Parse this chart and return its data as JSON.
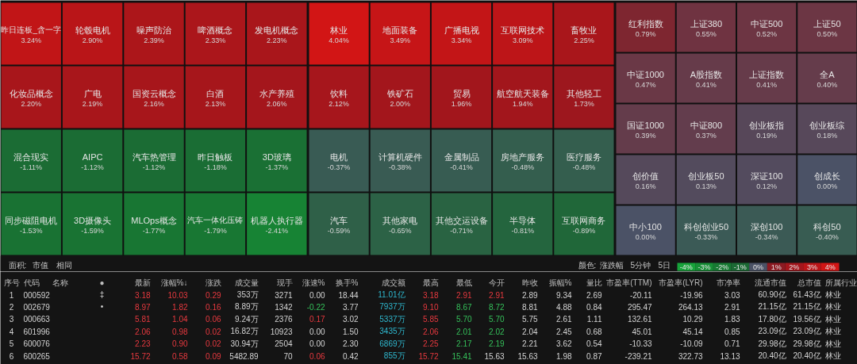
{
  "chart_data": [
    {
      "type": "other",
      "categories": [
        "昨日连板_含一字",
        "轮毂电机",
        "噪声防治",
        "啤酒概念",
        "发电机概念",
        "化妆品概念",
        "广电",
        "国资云概念",
        "白酒",
        "水产养殖",
        "混合现实",
        "AIPC",
        "汽车热管理",
        "昨日触板",
        "3D玻璃",
        "同步磁阻电机",
        "3D摄像头",
        "MLOps概念",
        "汽车一体化压铸",
        "机器人执行器",
        "林业",
        "地面装备",
        "广播电视",
        "互联网技术",
        "畜牧业",
        "饮料",
        "铁矿石",
        "贸易",
        "航空航天装备",
        "其他轻工",
        "电机",
        "计算机硬件",
        "金属制品",
        "房地产服务",
        "医疗服务",
        "汽车",
        "其他家电",
        "其他交运设备",
        "半导体",
        "互联网商务",
        "红利指数",
        "上证380",
        "中证500",
        "上证50",
        "中证1000",
        "A股指数",
        "上证指数",
        "全A",
        "国证1000",
        "中证800",
        "创业板指",
        "创业板综",
        "创价值",
        "创业板50",
        "深证100",
        "创成长",
        "中小100",
        "科创创业50",
        "深创100",
        "科创50"
      ],
      "values": [
        3.24,
        2.9,
        2.39,
        2.33,
        2.23,
        2.2,
        2.19,
        2.16,
        2.13,
        2.06,
        -1.11,
        -1.12,
        -1.12,
        -1.18,
        -1.37,
        -1.53,
        -1.59,
        -1.77,
        -1.79,
        -2.41,
        4.04,
        3.49,
        3.34,
        3.09,
        2.25,
        2.12,
        2.0,
        1.96,
        1.94,
        1.73,
        -0.37,
        -0.38,
        -0.41,
        -0.48,
        -0.48,
        -0.59,
        -0.65,
        -0.71,
        -0.81,
        -0.89,
        0.79,
        0.55,
        0.52,
        0.5,
        0.47,
        0.41,
        0.41,
        0.4,
        0.39,
        0.37,
        0.19,
        0.18,
        0.16,
        0.13,
        0.12,
        0.0,
        0.0,
        -0.33,
        -0.34,
        -0.4
      ],
      "value_labels": [
        "3.24%",
        "2.90%",
        "2.39%",
        "2.33%",
        "2.23%",
        "2.20%",
        "2.19%",
        "2.16%",
        "2.13%",
        "2.06%",
        "-1.11%",
        "-1.12%",
        "-1.12%",
        "-1.18%",
        "-1.37%",
        "-1.53%",
        "-1.59%",
        "-1.77%",
        "-1.79%",
        "-2.41%",
        "4.04%",
        "3.49%",
        "3.34%",
        "3.09%",
        "2.25%",
        "2.12%",
        "2.00%",
        "1.96%",
        "1.94%",
        "1.73%",
        "-0.37%",
        "-0.38%",
        "-0.41%",
        "-0.48%",
        "-0.48%",
        "-0.59%",
        "-0.65%",
        "-0.71%",
        "-0.81%",
        "-0.89%",
        "0.79%",
        "0.55%",
        "0.52%",
        "0.50%",
        "0.47%",
        "0.41%",
        "0.41%",
        "0.40%",
        "0.39%",
        "0.37%",
        "0.19%",
        "0.18%",
        "0.16%",
        "0.13%",
        "0.12%",
        "0.00%",
        "0.00%",
        "-0.33%",
        "-0.34%",
        "-0.40%"
      ],
      "annotations": [
        "面积:",
        "市值",
        "相同",
        "颜色:",
        "涨跌幅",
        "5分钟",
        "5日"
      ]
    },
    {
      "type": "heatmap",
      "categories": [
        null,
        null,
        null,
        null,
        null,
        null,
        null,
        null,
        null
      ],
      "y_categories": [
        null
      ],
      "cells": [
        [
          -4,
          -3,
          -2,
          -1,
          0,
          1,
          2,
          3,
          4
        ]
      ],
      "cell_labels": [
        [
          "-4%",
          "-3%",
          "-2%",
          "-1%",
          "0%",
          "1%",
          "2%",
          "3%",
          "4%"
        ]
      ]
    },
    {
      "type": "heatmap",
      "ylabel": "序号",
      "categories": [
        "代码",
        "名称",
        "●",
        "最新",
        "涨幅%↓",
        "涨跌",
        "成交量",
        "现手",
        "涨速%",
        "换手%",
        "成交额",
        "最高",
        "最低",
        "今开",
        "昨收",
        "振幅%",
        "量比",
        "市盈率(TTM)",
        "市盈率(LYR)",
        "市净率",
        "流通市值",
        "总市值",
        "所属行业"
      ],
      "y_categories": [
        "1",
        "2",
        "3",
        "4",
        "5",
        "6"
      ],
      "cells": [
        [
          null,
          null,
          null,
          3.18,
          10.03,
          0.29,
          353,
          3271,
          0.0,
          18.44,
          11.01,
          3.18,
          2.91,
          2.91,
          2.89,
          9.34,
          2.69,
          -20.11,
          -19.96,
          3.03,
          60.9,
          61.43,
          null
        ],
        [
          null,
          null,
          null,
          8.97,
          1.82,
          0.16,
          8.89,
          1342,
          -0.22,
          3.77,
          7937,
          9.1,
          8.67,
          8.72,
          8.81,
          4.88,
          0.84,
          295.47,
          264.13,
          2.91,
          21.15,
          21.15,
          null
        ],
        [
          null,
          null,
          null,
          5.81,
          1.04,
          0.06,
          9.24,
          2376,
          0.17,
          3.02,
          5337,
          5.85,
          5.7,
          5.7,
          5.75,
          2.61,
          1.11,
          132.61,
          10.29,
          1.83,
          17.8,
          19.56,
          null
        ],
        [
          null,
          null,
          null,
          2.06,
          0.98,
          0.02,
          16.82,
          10923,
          0.0,
          1.5,
          3435,
          2.06,
          2.01,
          2.02,
          2.04,
          2.45,
          0.68,
          45.01,
          45.14,
          0.85,
          23.09,
          23.09,
          null
        ],
        [
          null,
          null,
          null,
          2.23,
          0.9,
          0.02,
          30.94,
          2504,
          0.0,
          2.3,
          6869,
          2.25,
          2.17,
          2.19,
          2.21,
          3.62,
          0.54,
          -10.33,
          -10.09,
          0.71,
          29.98,
          29.98,
          null
        ],
        [
          null,
          null,
          null,
          15.72,
          0.58,
          0.09,
          5482.89,
          70,
          0.06,
          0.42,
          855,
          15.72,
          15.41,
          15.63,
          15.63,
          1.98,
          0.87,
          -239.21,
          322.73,
          13.13,
          20.4,
          20.4,
          null
        ]
      ],
      "cell_labels": [
        [
          "000592",
          null,
          "‡",
          "3.18",
          "10.03",
          "0.29",
          "353万",
          "3271",
          "0.00",
          "18.44",
          "11.01亿",
          "3.18",
          "2.91",
          "2.91",
          "2.89",
          "9.34",
          "2.69",
          "-20.11",
          "-19.96",
          "3.03",
          "60.90亿",
          "61.43亿",
          "林业"
        ],
        [
          "002679",
          null,
          "•",
          "8.97",
          "1.82",
          "0.16",
          "8.89万",
          "1342",
          "-0.22",
          "3.77",
          "7937万",
          "9.10",
          "8.67",
          "8.72",
          "8.81",
          "4.88",
          "0.84",
          "295.47",
          "264.13",
          "2.91",
          "21.15亿",
          "21.15亿",
          "林业"
        ],
        [
          "000663",
          null,
          null,
          "5.81",
          "1.04",
          "0.06",
          "9.24万",
          "2376",
          "0.17",
          "3.02",
          "5337万",
          "5.85",
          "5.70",
          "5.70",
          "5.75",
          "2.61",
          "1.11",
          "132.61",
          "10.29",
          "1.83",
          "17.80亿",
          "19.56亿",
          "林业"
        ],
        [
          "601996",
          null,
          null,
          "2.06",
          "0.98",
          "0.02",
          "16.82万",
          "10923",
          "0.00",
          "1.50",
          "3435万",
          "2.06",
          "2.01",
          "2.02",
          "2.04",
          "2.45",
          "0.68",
          "45.01",
          "45.14",
          "0.85",
          "23.09亿",
          "23.09亿",
          "林业"
        ],
        [
          "600076",
          null,
          null,
          "2.23",
          "0.90",
          "0.02",
          "30.94万",
          "2504",
          "0.00",
          "2.30",
          "6869万",
          "2.25",
          "2.17",
          "2.19",
          "2.21",
          "3.62",
          "0.54",
          "-10.33",
          "-10.09",
          "0.71",
          "29.98亿",
          "29.98亿",
          "林业"
        ],
        [
          "600265",
          null,
          null,
          "15.72",
          "0.58",
          "0.09",
          "5482.89",
          "70",
          "0.06",
          "0.42",
          "855万",
          "15.72",
          "15.41",
          "15.63",
          "15.63",
          "1.98",
          "0.87",
          "-239.21",
          "322.73",
          "13.13",
          "20.40亿",
          "20.40亿",
          "林业"
        ]
      ]
    }
  ]
}
